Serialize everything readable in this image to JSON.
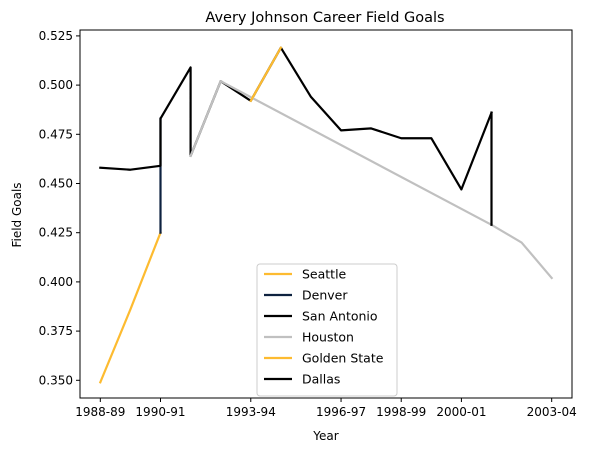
{
  "chart_data": {
    "type": "line",
    "title": "Avery Johnson Career Field Goals",
    "xlabel": "Year",
    "ylabel": "Field Goals",
    "xlim": [
      "1988-89",
      "2003-04"
    ],
    "ylim": [
      0.341,
      0.528
    ],
    "xticks": [
      "1988-89",
      "1990-91",
      "1993-94",
      "1996-97",
      "1998-99",
      "2000-01",
      "2003-04"
    ],
    "yticks": [
      "0.350",
      "0.375",
      "0.400",
      "0.425",
      "0.450",
      "0.475",
      "0.500",
      "0.525"
    ],
    "grid": false,
    "legend_position": "lower center",
    "series": [
      {
        "name": "Seattle",
        "color": "#FDBB30",
        "points": [
          [
            "1988-89",
            0.349
          ],
          [
            "1989-90",
            0.386
          ],
          [
            "1990-91",
            0.425
          ]
        ]
      },
      {
        "name": "Denver",
        "color": "#0E2240",
        "points": [
          [
            "1990-91",
            0.425
          ],
          [
            "1990-91",
            0.483
          ]
        ]
      },
      {
        "name": "San Antonio",
        "color": "#000000",
        "points": [
          [
            "1988-89",
            0.458
          ],
          [
            "1989-90",
            0.457
          ],
          [
            "1990-91",
            0.459
          ],
          [
            "1990-91",
            0.483
          ],
          [
            "1991-92",
            0.509
          ],
          [
            "1991-92",
            0.464
          ],
          [
            "1992-93",
            0.502
          ],
          [
            "1993-94",
            0.492
          ],
          [
            "1994-95",
            0.519
          ],
          [
            "1995-96",
            0.494
          ],
          [
            "1996-97",
            0.477
          ],
          [
            "1997-98",
            0.478
          ],
          [
            "1998-99",
            0.473
          ],
          [
            "1999-00",
            0.473
          ],
          [
            "2000-01",
            0.447
          ],
          [
            "2001-02",
            0.486
          ]
        ]
      },
      {
        "name": "Houston",
        "color": "#C0C0C0",
        "points": [
          [
            "1991-92",
            0.464
          ],
          [
            "1992-93",
            0.502
          ],
          [
            "2001-02",
            0.429
          ],
          [
            "2002-03",
            0.42
          ],
          [
            "2003-04",
            0.402
          ]
        ]
      },
      {
        "name": "Golden State",
        "color": "#FDBB30",
        "points": [
          [
            "1993-94",
            0.492
          ],
          [
            "1994-95",
            0.519
          ]
        ]
      },
      {
        "name": "Dallas",
        "color": "#000000",
        "points": [
          [
            "2001-02",
            0.486
          ],
          [
            "2001-02",
            0.429
          ]
        ]
      }
    ]
  }
}
